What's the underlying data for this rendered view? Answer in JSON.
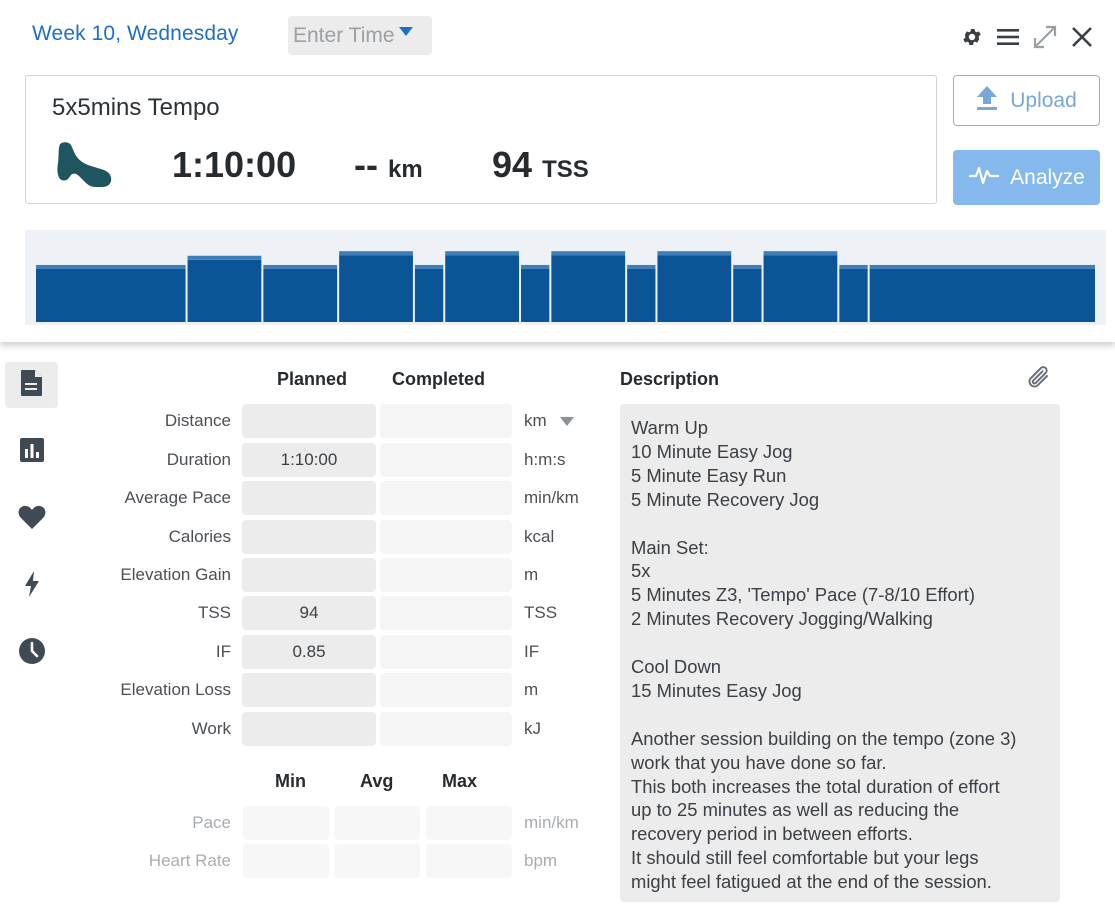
{
  "header": {
    "week_title": "Week 10, Wednesday",
    "time_placeholder": "Enter Time"
  },
  "toolbar": {
    "icons": [
      "gear-icon",
      "menu-icon",
      "expand-icon",
      "close-icon"
    ]
  },
  "workout": {
    "name": "5x5mins Tempo",
    "sport_icon": "running-shoe-icon",
    "duration": "1:10:00",
    "distance_value": "--",
    "distance_unit": "km",
    "tss_value": "94",
    "tss_unit": "TSS"
  },
  "actions": {
    "upload_label": "Upload",
    "analyze_label": "Analyze"
  },
  "colors": {
    "accent": "#1f6fc5",
    "bar": "#0b5596",
    "bar_top": "#3f7fb8",
    "button_analyze": "#85b8ed"
  },
  "structure_chart": {
    "type": "bar",
    "intensity_levels": [
      0.62,
      0.72,
      0.62,
      0.77,
      0.62,
      0.77,
      0.62,
      0.77,
      0.62,
      0.77,
      0.62,
      0.77,
      0.62,
      0.62
    ],
    "step_minutes": [
      10,
      5,
      5,
      5,
      2,
      5,
      2,
      5,
      2,
      5,
      2,
      5,
      2,
      15
    ]
  },
  "side_nav": {
    "items": [
      {
        "name": "nav-document",
        "icon": "document-icon",
        "active": true
      },
      {
        "name": "nav-stats",
        "icon": "bar-chart-icon",
        "active": false
      },
      {
        "name": "nav-heart",
        "icon": "heart-icon",
        "active": false
      },
      {
        "name": "nav-power",
        "icon": "lightning-icon",
        "active": false
      },
      {
        "name": "nav-time",
        "icon": "clock-icon",
        "active": false
      }
    ]
  },
  "stats": {
    "planned_header": "Planned",
    "completed_header": "Completed",
    "rows": [
      {
        "label": "Distance",
        "planned": "",
        "completed": "",
        "unit": "km"
      },
      {
        "label": "Duration",
        "planned": "1:10:00",
        "completed": "",
        "unit": "h:m:s"
      },
      {
        "label": "Average Pace",
        "planned": "",
        "completed": "",
        "unit": "min/km"
      },
      {
        "label": "Calories",
        "planned": "",
        "completed": "",
        "unit": "kcal"
      },
      {
        "label": "Elevation Gain",
        "planned": "",
        "completed": "",
        "unit": "m"
      },
      {
        "label": "TSS",
        "planned": "94",
        "completed": "",
        "unit": "TSS"
      },
      {
        "label": "IF",
        "planned": "0.85",
        "completed": "",
        "unit": "IF"
      },
      {
        "label": "Elevation Loss",
        "planned": "",
        "completed": "",
        "unit": "m"
      },
      {
        "label": "Work",
        "planned": "",
        "completed": "",
        "unit": "kJ"
      }
    ],
    "min_header": "Min",
    "avg_header": "Avg",
    "max_header": "Max",
    "range_rows": [
      {
        "label": "Pace",
        "unit": "min/km"
      },
      {
        "label": "Heart Rate",
        "unit": "bpm"
      }
    ]
  },
  "description": {
    "heading": "Description",
    "lines": [
      "Warm Up",
      "10 Minute Easy Jog",
      "5 Minute Easy Run",
      "5 Minute Recovery Jog",
      "",
      "Main Set:",
      "5x",
      "5 Minutes Z3, 'Tempo' Pace (7-8/10 Effort)",
      "2 Minutes Recovery Jogging/Walking",
      "",
      "Cool Down",
      "15 Minutes Easy Jog",
      "",
      "Another session building on the tempo (zone 3)",
      "work that you have done so far.",
      "This both increases the total duration of effort",
      "up to 25 minutes as well as reducing the",
      "recovery period in between efforts.",
      "It should still feel comfortable but your legs",
      "might feel fatigued at the end of the session."
    ]
  }
}
